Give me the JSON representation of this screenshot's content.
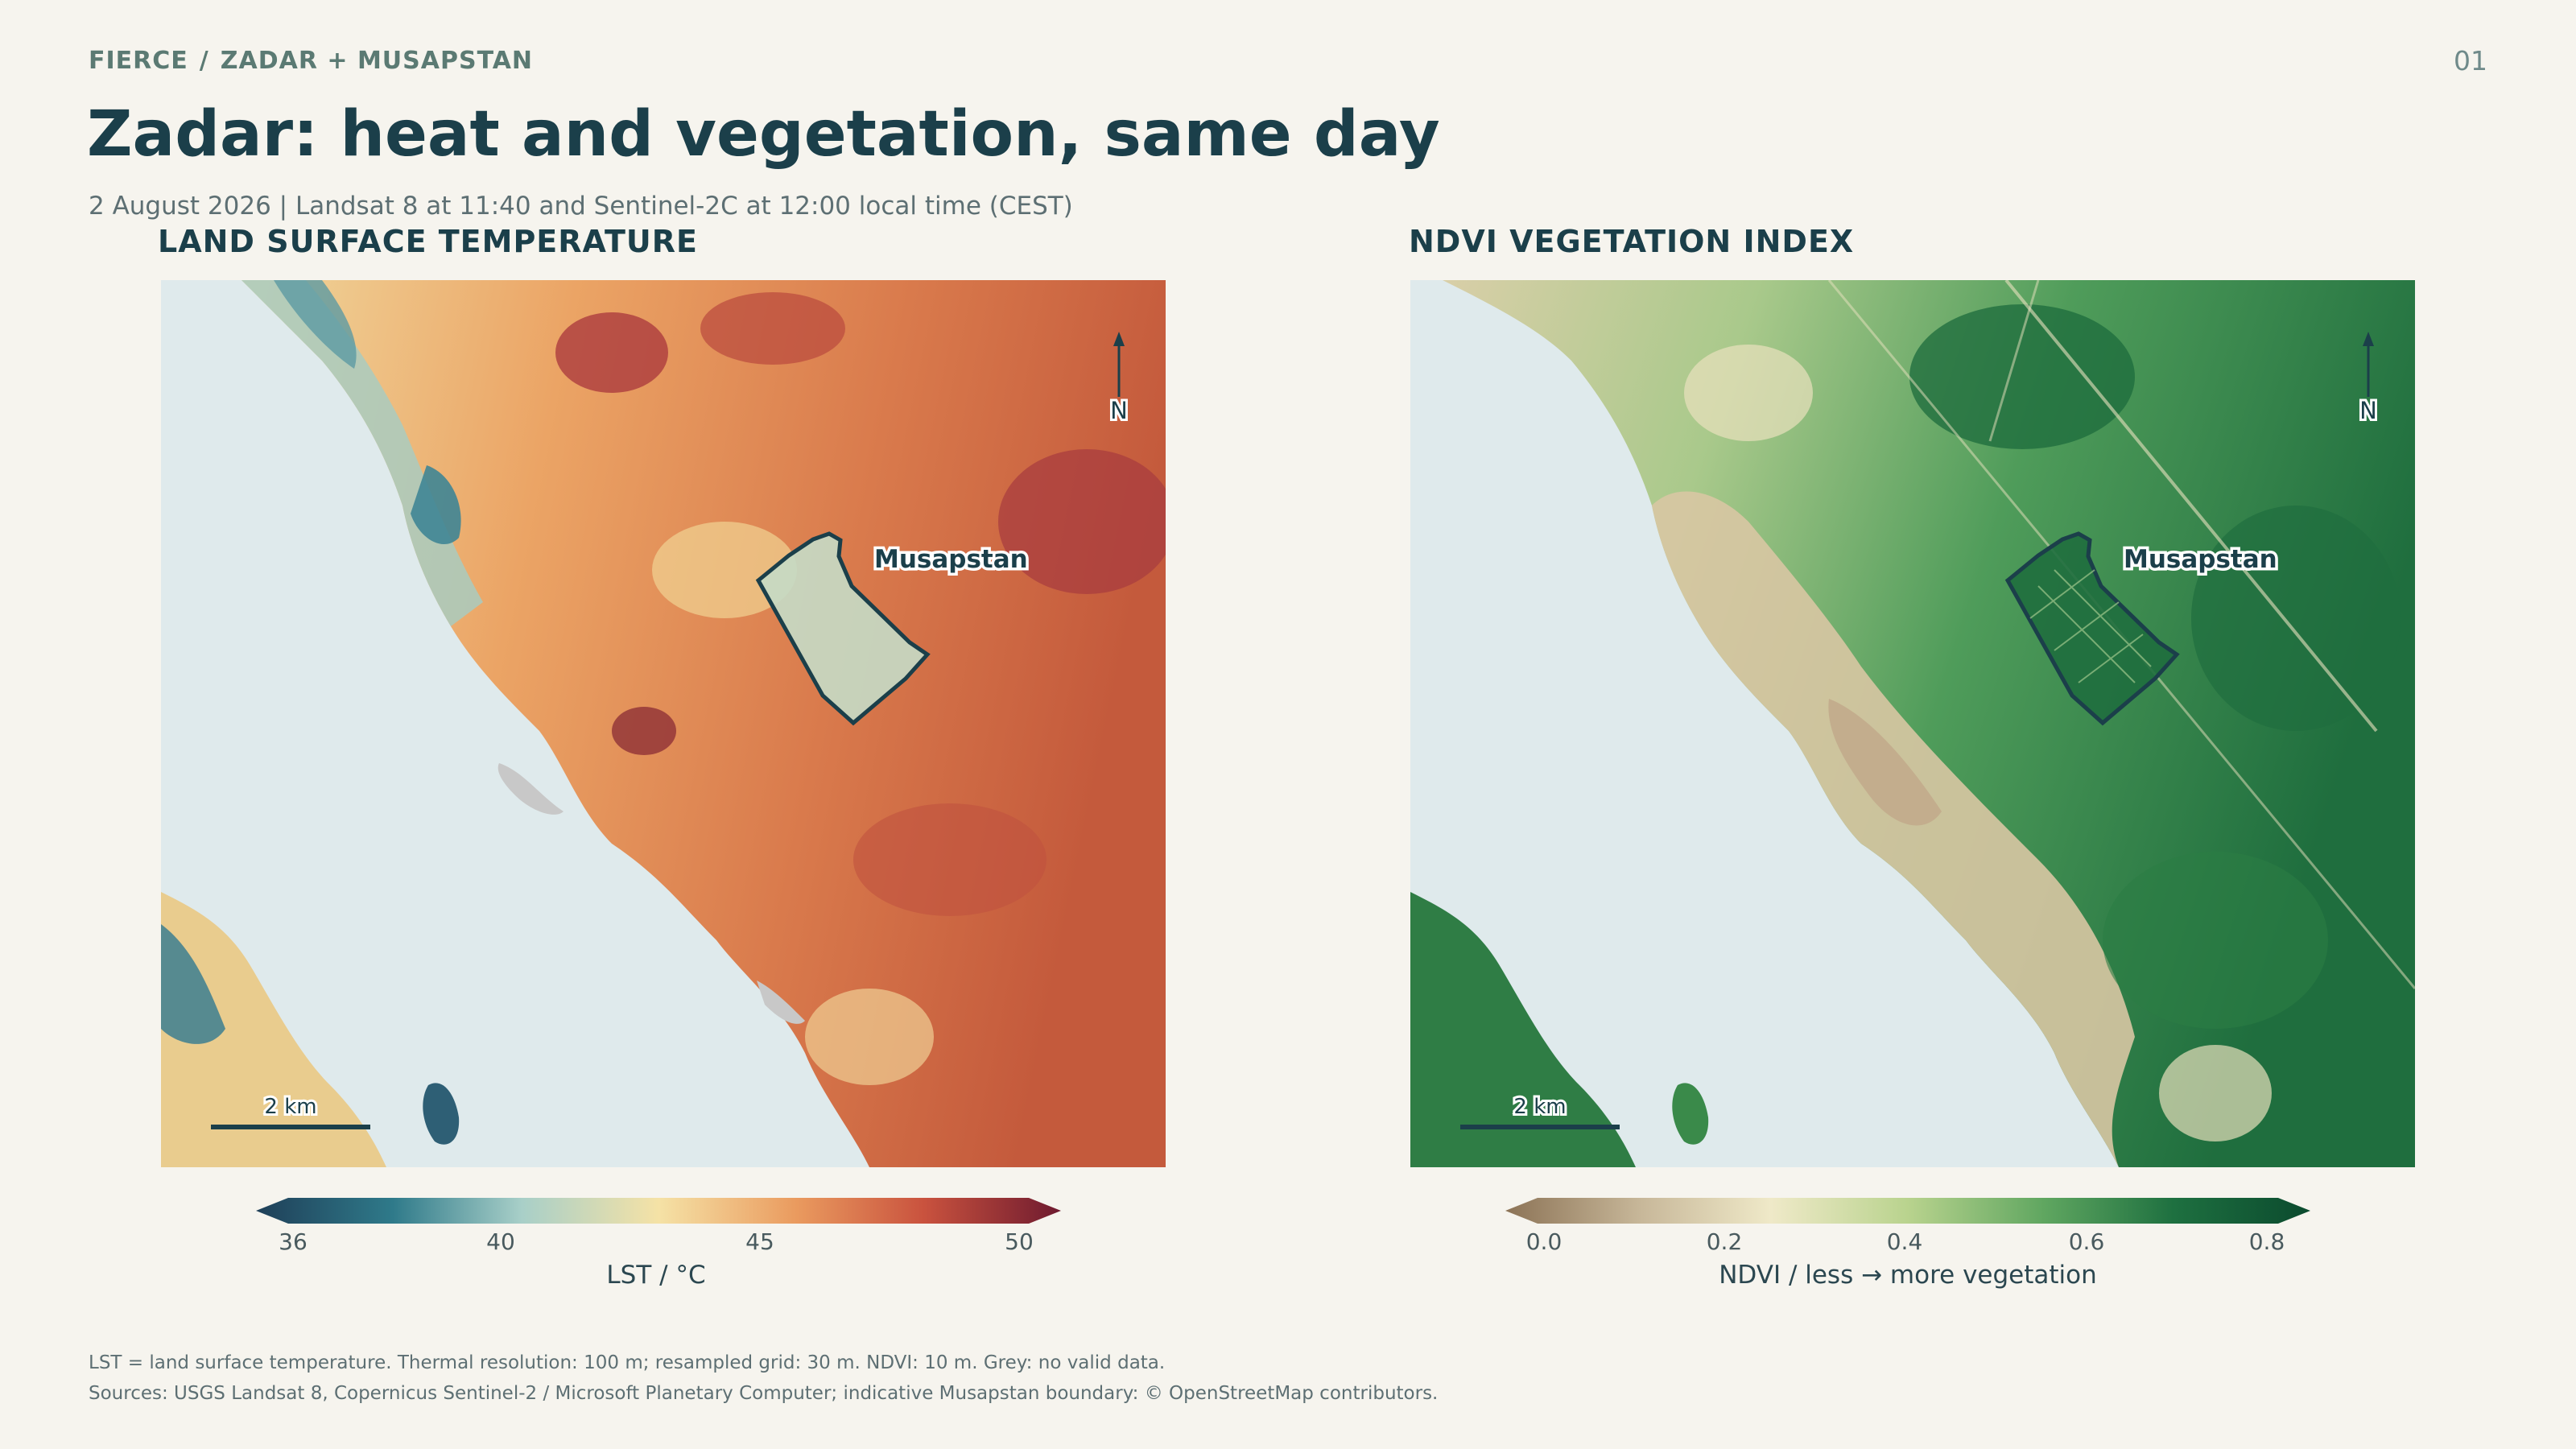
{
  "header": {
    "kicker_left": "FIERCE",
    "kicker_sep": "/",
    "kicker_right": "ZADAR + MUSAPSTAN",
    "page_number": "01",
    "title": "Zadar: heat and vegetation, same day",
    "subtitle": "2 August 2026 | Landsat 8 at 11:40 and Sentinel-2C at 12:00 local time (CEST)"
  },
  "panels": {
    "lst": {
      "title": "LAND SURFACE TEMPERATURE",
      "aoi_label": "Musapstan",
      "north_label": "N",
      "scale_label": "2 km",
      "colorbar": {
        "ticks": [
          "36",
          "40",
          "45",
          "50"
        ],
        "label": "LST / °C",
        "colors": [
          "#1f3f58",
          "#2f7a8a",
          "#a8cfc8",
          "#f5e2a6",
          "#ea9b5f",
          "#c9523e",
          "#6e1a2f"
        ]
      }
    },
    "ndvi": {
      "title": "NDVI VEGETATION INDEX",
      "aoi_label": "Musapstan",
      "north_label": "N",
      "scale_label": "2 km",
      "colorbar": {
        "ticks": [
          "0.0",
          "0.2",
          "0.4",
          "0.6",
          "0.8"
        ],
        "label": "NDVI / less → more vegetation",
        "colors": [
          "#8c7356",
          "#c8b89a",
          "#efe9c8",
          "#b9d38e",
          "#5fa660",
          "#1e7040",
          "#0b4a2e"
        ]
      }
    }
  },
  "colors": {
    "background": "#f6f4ee",
    "sea": "#dfeaec",
    "nodata": "#c8c8c8",
    "outline": "#1b3f4a"
  },
  "footer": {
    "line1": "LST = land surface temperature. Thermal resolution: 100 m; resampled grid: 30 m. NDVI: 10 m. Grey: no valid data.",
    "line2": "Sources: USGS Landsat 8, Copernicus Sentinel-2 / Microsoft Planetary Computer; indicative Musapstan boundary: © OpenStreetMap contributors."
  }
}
